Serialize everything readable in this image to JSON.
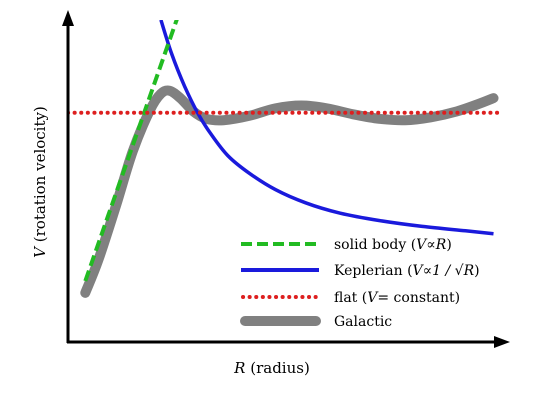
{
  "chart_data": {
    "type": "line",
    "xlabel": {
      "sym": "R",
      "text": " (radius)"
    },
    "ylabel": {
      "sym": "V",
      "text": " (rotation velocity)"
    },
    "xlim": [
      0,
      1
    ],
    "ylim": [
      0,
      1
    ],
    "ticks": "none",
    "grid": false,
    "legend_position": "lower-right",
    "series": [
      {
        "key": "solid",
        "legend": {
          "pre": "solid body (",
          "sym": "V",
          "rel": "∝",
          "rhs": "R",
          "post": ")"
        },
        "color": "#22bb22",
        "style": "dashed",
        "x": [
          0.04,
          0.255
        ],
        "y": [
          0.2,
          1.1
        ]
      },
      {
        "key": "kepler",
        "legend": {
          "pre": "Keplerian (",
          "sym": "V",
          "rel": "∝",
          "rhs": "1 / √R",
          "post": ")"
        },
        "color": "#1a1adc",
        "style": "solid",
        "x": [
          0.215,
          0.24,
          0.27,
          0.3,
          0.33,
          0.37,
          0.42,
          0.48,
          0.55,
          0.63,
          0.72,
          0.82,
          0.92,
          0.985
        ],
        "y": [
          1.085,
          0.97,
          0.86,
          0.77,
          0.7,
          0.625,
          0.565,
          0.51,
          0.465,
          0.43,
          0.405,
          0.385,
          0.37,
          0.36
        ]
      },
      {
        "key": "flat",
        "legend": {
          "pre": "flat (",
          "sym": "V",
          "rel": "=",
          "rhs": " constant",
          "post": ")"
        },
        "color": "#dd1f1f",
        "style": "dotted",
        "x": [
          0.0,
          1.0
        ],
        "y": [
          0.77,
          0.77
        ]
      },
      {
        "key": "galactic",
        "legend": {
          "pre": "Galactic",
          "sym": "",
          "rel": "",
          "rhs": "",
          "post": ""
        },
        "color": "#808080",
        "style": "thick",
        "x": [
          0.04,
          0.07,
          0.11,
          0.15,
          0.19,
          0.215,
          0.235,
          0.26,
          0.29,
          0.32,
          0.36,
          0.42,
          0.48,
          0.54,
          0.6,
          0.66,
          0.72,
          0.78,
          0.84,
          0.9,
          0.95,
          0.985
        ],
        "y": [
          0.16,
          0.27,
          0.45,
          0.64,
          0.78,
          0.835,
          0.845,
          0.82,
          0.775,
          0.75,
          0.745,
          0.76,
          0.785,
          0.795,
          0.785,
          0.765,
          0.75,
          0.745,
          0.755,
          0.775,
          0.8,
          0.82
        ]
      }
    ]
  }
}
